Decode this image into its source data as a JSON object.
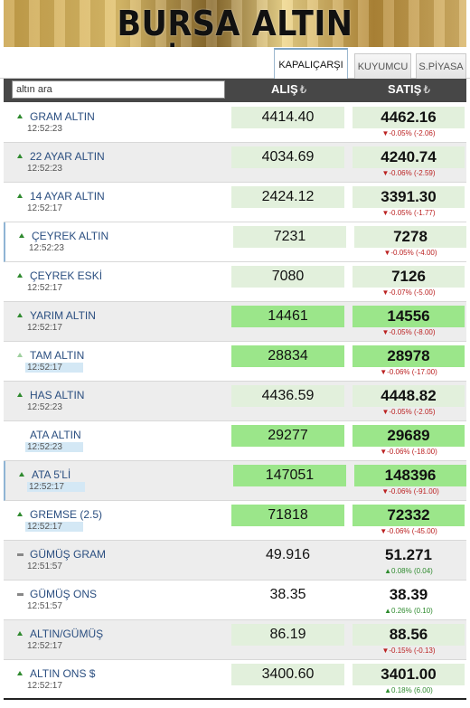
{
  "banner": {
    "title": "BURSA ALTIN FİYATLARI"
  },
  "tabs": [
    {
      "label": "KAPALIÇARŞI",
      "active": true
    },
    {
      "label": "KUYUMCU",
      "active": false
    },
    {
      "label": "S.PİYASA",
      "active": false
    }
  ],
  "header": {
    "search_value": "altın ara",
    "buy_label": "ALIŞ",
    "sell_label": "SATIŞ",
    "currency_icon": "₺"
  },
  "colors": {
    "up": "#2f8a2f",
    "down": "#b22222",
    "highlight": "#9be68a",
    "pale": "#e2f0dc"
  },
  "rows": [
    {
      "name": "GRAM ALTIN",
      "time": "12:52:23",
      "buy": "4414.40",
      "sell": "4462.16",
      "change": "▼-0.05% (-2.06)",
      "dir": "down",
      "icon": "up-arrow-icon",
      "bg": "pale"
    },
    {
      "name": "22 AYAR ALTIN",
      "time": "12:52:23",
      "buy": "4034.69",
      "sell": "4240.74",
      "change": "▼-0.06% (-2.59)",
      "dir": "down",
      "icon": "up-arrow-icon",
      "bg": "pale"
    },
    {
      "name": "14 AYAR ALTIN",
      "time": "12:52:17",
      "buy": "2424.12",
      "sell": "3391.30",
      "change": "▼-0.05% (-1.77)",
      "dir": "down",
      "icon": "up-arrow-icon",
      "bg": "pale"
    },
    {
      "name": "ÇEYREK ALTIN",
      "time": "12:52:23",
      "buy": "7231",
      "sell": "7278",
      "change": "▼-0.05% (-4.00)",
      "dir": "down",
      "icon": "up-arrow-icon",
      "bg": "pale"
    },
    {
      "name": "ÇEYREK ESKİ",
      "time": "12:52:17",
      "buy": "7080",
      "sell": "7126",
      "change": "▼-0.07% (-5.00)",
      "dir": "down",
      "icon": "up-arrow-icon",
      "bg": "pale"
    },
    {
      "name": "YARIM ALTIN",
      "time": "12:52:17",
      "buy": "14461",
      "sell": "14556",
      "change": "▼-0.05% (-8.00)",
      "dir": "down",
      "icon": "up-arrow-icon",
      "bg": "green"
    },
    {
      "name": "TAM ALTIN",
      "time": "12:52:17",
      "buy": "28834",
      "sell": "28978",
      "change": "▼-0.06% (-17.00)",
      "dir": "down",
      "icon": "faint-arrow-icon",
      "bg": "green"
    },
    {
      "name": "HAS ALTIN",
      "time": "12:52:23",
      "buy": "4436.59",
      "sell": "4448.82",
      "change": "▼-0.05% (-2.05)",
      "dir": "down",
      "icon": "up-arrow-icon",
      "bg": "pale"
    },
    {
      "name": "ATA ALTIN",
      "time": "12:52:23",
      "buy": "29277",
      "sell": "29689",
      "change": "▼-0.06% (-18.00)",
      "dir": "down",
      "icon": "none",
      "bg": "green"
    },
    {
      "name": "ATA 5'Lİ",
      "time": "12:52:17",
      "buy": "147051",
      "sell": "148396",
      "change": "▼-0.06% (-91.00)",
      "dir": "down",
      "icon": "up-arrow-icon",
      "bg": "green"
    },
    {
      "name": "GREMSE (2.5)",
      "time": "12:52:17",
      "buy": "71818",
      "sell": "72332",
      "change": "▼-0.06% (-45.00)",
      "dir": "down",
      "icon": "up-arrow-icon",
      "bg": "green"
    },
    {
      "name": "GÜMÜŞ GRAM",
      "time": "12:51:57",
      "buy": "49.916",
      "sell": "51.271",
      "change": "▲0.08% (0.04)",
      "dir": "up",
      "icon": "flat-icon",
      "bg": "none"
    },
    {
      "name": "GÜMÜŞ ONS",
      "time": "12:51:57",
      "buy": "38.35",
      "sell": "38.39",
      "change": "▲0.26% (0.10)",
      "dir": "up",
      "icon": "flat-icon",
      "bg": "none"
    },
    {
      "name": "ALTIN/GÜMÜŞ",
      "time": "12:52:17",
      "buy": "86.19",
      "sell": "88.56",
      "change": "▼-0.15% (-0.13)",
      "dir": "down",
      "icon": "up-arrow-icon",
      "bg": "pale"
    },
    {
      "name": "ALTIN ONS $",
      "time": "12:52:17",
      "buy": "3400.60",
      "sell": "3401.00",
      "change": "▲0.18% (6.00)",
      "dir": "up",
      "icon": "up-arrow-icon",
      "bg": "pale"
    }
  ]
}
